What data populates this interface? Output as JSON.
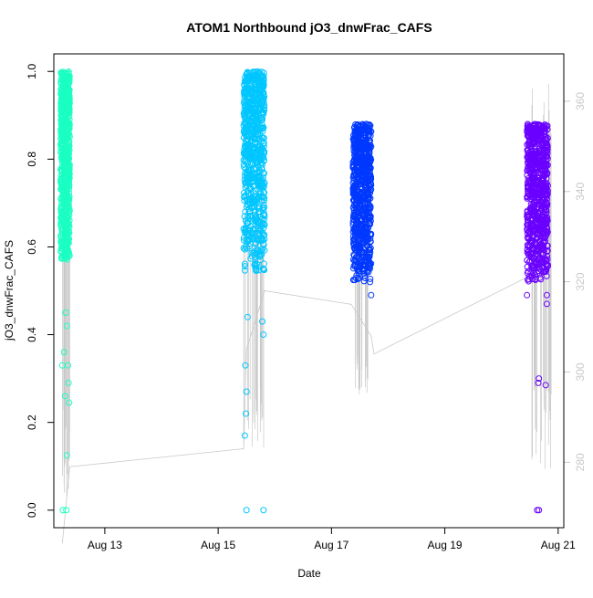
{
  "chart_data": {
    "type": "scatter",
    "title": "ATOM1 Northbound jO3_dnwFrac_CAFS",
    "xlabel": "Date",
    "ylabel": "jO3_dnwFrac_CAFS",
    "xlim": [
      12.1,
      21.1
    ],
    "ylim": [
      -0.04,
      1.04
    ],
    "y2lim": [
      265.5,
      370.5
    ],
    "x_ticks": [
      {
        "value": 13,
        "label": "Aug 13"
      },
      {
        "value": 15,
        "label": "Aug 15"
      },
      {
        "value": 17,
        "label": "Aug 17"
      },
      {
        "value": 19,
        "label": "Aug 19"
      },
      {
        "value": 21,
        "label": "Aug 21"
      }
    ],
    "y_ticks": [
      {
        "value": 0.0,
        "label": "0.0"
      },
      {
        "value": 0.2,
        "label": "0.2"
      },
      {
        "value": 0.4,
        "label": "0.4"
      },
      {
        "value": 0.6,
        "label": "0.6"
      },
      {
        "value": 0.8,
        "label": "0.8"
      },
      {
        "value": 1.0,
        "label": "1.0"
      }
    ],
    "y2_ticks": [
      {
        "value": 280,
        "label": "280"
      },
      {
        "value": 300,
        "label": "300"
      },
      {
        "value": 320,
        "label": "320"
      },
      {
        "value": 340,
        "label": "340"
      },
      {
        "value": 360,
        "label": "360"
      }
    ],
    "grid": false,
    "series": [
      {
        "color": "#1affc3",
        "x_range": [
          12.22,
          12.38
        ],
        "y_dense_range": [
          0.57,
          1.0
        ],
        "outliers": [
          [
            12.25,
            0.33
          ],
          [
            12.28,
            0.36
          ],
          [
            12.31,
            0.45
          ],
          [
            12.33,
            0.42
          ],
          [
            12.3,
            0.26
          ],
          [
            12.35,
            0.33
          ],
          [
            12.36,
            0.29
          ],
          [
            12.37,
            0.245
          ],
          [
            12.33,
            0.125
          ],
          [
            12.26,
            0.0
          ],
          [
            12.32,
            0.0
          ]
        ]
      },
      {
        "color": "#00c6ff",
        "x_range": [
          15.45,
          15.82
        ],
        "y_dense_range": [
          0.54,
          1.0
        ],
        "outliers": [
          [
            15.48,
            0.33
          ],
          [
            15.5,
            0.27
          ],
          [
            15.49,
            0.22
          ],
          [
            15.47,
            0.17
          ],
          [
            15.52,
            0.44
          ],
          [
            15.78,
            0.43
          ],
          [
            15.8,
            0.4
          ],
          [
            15.5,
            0.0
          ],
          [
            15.8,
            0.0
          ]
        ]
      },
      {
        "color": "#0038ff",
        "x_range": [
          17.38,
          17.7
        ],
        "y_dense_range": [
          0.52,
          0.88
        ],
        "outliers": [
          [
            17.7,
            0.49
          ],
          [
            17.68,
            0.52
          ]
        ]
      },
      {
        "color": "#6a00ff",
        "x_range": [
          20.45,
          20.82
        ],
        "y_dense_range": [
          0.52,
          0.88
        ],
        "outliers": [
          [
            20.46,
            0.54
          ],
          [
            20.45,
            0.49
          ],
          [
            20.66,
            0.3
          ],
          [
            20.65,
            0.29
          ],
          [
            20.78,
            0.285
          ],
          [
            20.8,
            0.47
          ],
          [
            20.8,
            0.49
          ],
          [
            20.78,
            0.56
          ],
          [
            20.63,
            0.0
          ],
          [
            20.66,
            0.0
          ]
        ]
      }
    ],
    "altitude_line": {
      "color": "#c8c8c8",
      "path": [
        [
          12.25,
          262.0
        ],
        [
          12.38,
          279.0
        ],
        [
          15.45,
          283.0
        ],
        [
          15.5,
          305.0
        ],
        [
          15.82,
          318.0
        ],
        [
          17.35,
          315.0
        ],
        [
          17.7,
          308.0
        ],
        [
          17.75,
          304.0
        ],
        [
          20.45,
          321.0
        ],
        [
          20.82,
          328.0
        ]
      ],
      "spikes": [
        {
          "x_range": [
            12.25,
            12.38
          ],
          "y_range": [
            270,
            368
          ]
        },
        {
          "x_range": [
            15.45,
            15.82
          ],
          "y_range": [
            280,
            345
          ]
        },
        {
          "x_range": [
            17.38,
            17.7
          ],
          "y_range": [
            295,
            342
          ]
        },
        {
          "x_range": [
            20.45,
            20.88
          ],
          "y_range": [
            278,
            365
          ]
        }
      ]
    }
  }
}
